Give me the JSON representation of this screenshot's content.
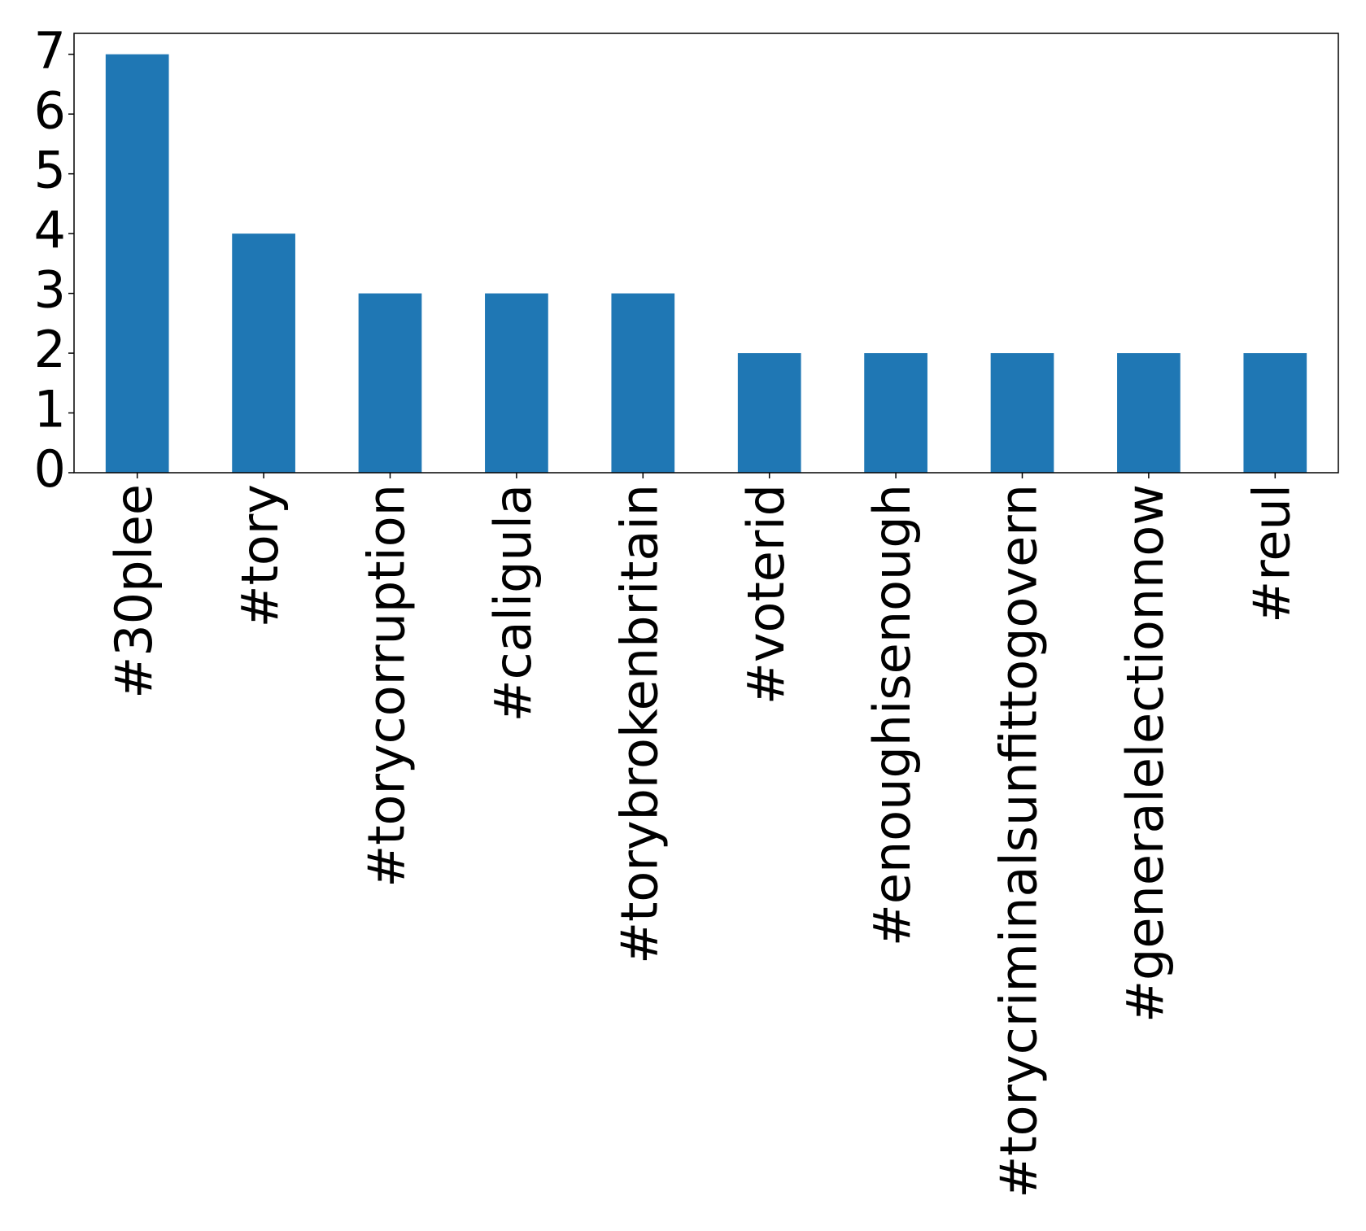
{
  "chart_data": {
    "type": "bar",
    "categories": [
      "#30plee",
      "#tory",
      "#torycorruption",
      "#caligula",
      "#torybrokenbritain",
      "#voterid",
      "#enoughisenough",
      "#torycriminalsunfittogovern",
      "#generalelectionnow",
      "#reul"
    ],
    "values": [
      7,
      4,
      3,
      3,
      3,
      2,
      2,
      2,
      2,
      2
    ],
    "color": "#1f77b4",
    "ylim": [
      0,
      7.35
    ],
    "yticks": [
      0,
      1,
      2,
      3,
      4,
      5,
      6,
      7
    ],
    "grid": false
  }
}
